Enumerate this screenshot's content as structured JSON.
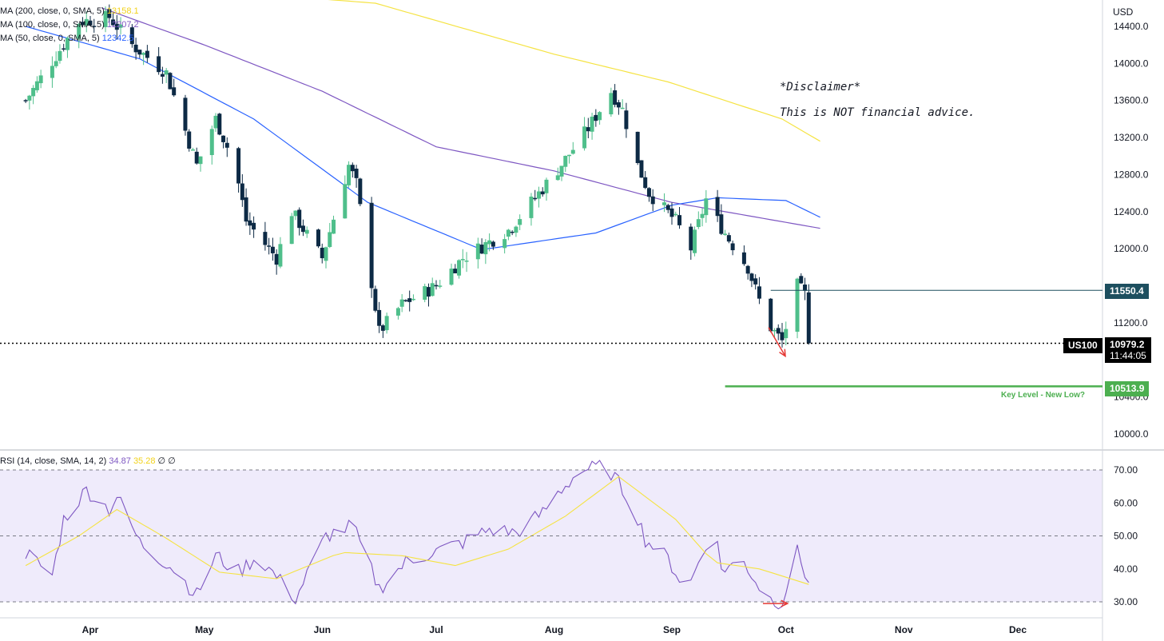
{
  "symbol": "US100",
  "currency": "USD",
  "indicators": {
    "ma200": {
      "label": "MA (200, close, 0, SMA, 5)",
      "value": "13158.1",
      "color": "#f5e342"
    },
    "ma100": {
      "label": "MA (100, close, 0, SMA, 5)",
      "value": "12207.2",
      "color": "#7e57c2"
    },
    "ma50": {
      "label": "MA (50, close, 0, SMA, 5)",
      "value": "12342.5",
      "color": "#2962ff"
    },
    "rsi": {
      "label": "RSI (14, close, SMA, 14, 2)",
      "value": "34.87",
      "ma_value": "35.28",
      "extra": "∅ ∅"
    }
  },
  "annotations": {
    "disclaimer_title": "*Disclaimer*",
    "disclaimer_text": "This is NOT financial advice.",
    "resistance": "11550.4",
    "last_price": "10979.2",
    "countdown": "11:44:05",
    "key_level": "10513.9",
    "key_level_label": "Key Level - New Low?"
  },
  "colors": {
    "up": "#4fbf8b",
    "down": "#0d2a45",
    "resistance_line": "#1d4f5f",
    "key_level": "#4caf50",
    "arrow": "#e53935",
    "rsi_line": "#7e57c2",
    "rsi_ma": "#f5e342",
    "rsi_band": "#efebfb"
  },
  "chart_data": [
    {
      "type": "candlestick",
      "title": "US100",
      "ylabel": "USD",
      "ylim": [
        9900,
        14600
      ],
      "y_ticks": [
        "14400.0",
        "14000.0",
        "13600.0",
        "13200.0",
        "12800.0",
        "12400.0",
        "12000.0",
        "11200.0",
        "10400.0",
        "10000.0"
      ],
      "x_ticks": [
        "Apr",
        "May",
        "Jun",
        "Jul",
        "Aug",
        "Sep",
        "Oct",
        "Nov",
        "Dec"
      ],
      "anchors": [
        {
          "date": "Mar 15",
          "close": 13600
        },
        {
          "date": "Mar 29",
          "close": 14450
        },
        {
          "date": "Apr 6",
          "close": 14500
        },
        {
          "date": "Apr 12",
          "close": 14200
        },
        {
          "date": "Apr 21",
          "close": 13900
        },
        {
          "date": "Apr 29",
          "close": 12900
        },
        {
          "date": "May 4",
          "close": 13400
        },
        {
          "date": "May 9",
          "close": 12900
        },
        {
          "date": "May 12",
          "close": 12300
        },
        {
          "date": "May 20",
          "close": 11900
        },
        {
          "date": "May 24",
          "close": 12400
        },
        {
          "date": "Jun 1",
          "close": 11900
        },
        {
          "date": "Jun 8",
          "close": 12900
        },
        {
          "date": "Jun 10",
          "close": 12700
        },
        {
          "date": "Jun 16",
          "close": 11100
        },
        {
          "date": "Jun 22",
          "close": 11400
        },
        {
          "date": "Jul 1",
          "close": 11600
        },
        {
          "date": "Jul 8",
          "close": 11900
        },
        {
          "date": "Jul 20",
          "close": 12200
        },
        {
          "date": "Aug 1",
          "close": 12800
        },
        {
          "date": "Aug 10",
          "close": 13300
        },
        {
          "date": "Aug 16",
          "close": 13700
        },
        {
          "date": "Aug 19",
          "close": 13500
        },
        {
          "date": "Aug 23",
          "close": 12900
        },
        {
          "date": "Aug 26",
          "close": 12600
        },
        {
          "date": "Sep 2",
          "close": 12300
        },
        {
          "date": "Sep 6",
          "close": 12000
        },
        {
          "date": "Sep 12",
          "close": 12800
        },
        {
          "date": "Sep 13",
          "close": 12300
        },
        {
          "date": "Sep 16",
          "close": 12100
        },
        {
          "date": "Sep 21",
          "close": 11800
        },
        {
          "date": "Sep 26",
          "close": 11200
        },
        {
          "date": "Sep 30",
          "close": 11000
        },
        {
          "date": "Oct 4",
          "close": 11600
        },
        {
          "date": "Oct 6",
          "close": 11500
        },
        {
          "date": "Oct 7",
          "close": 10979.2
        }
      ],
      "series": [
        {
          "name": "MA (200, close, 0, SMA, 5)",
          "points": [
            {
              "date": "Apr 29",
              "value": 14800
            },
            {
              "date": "Jun 15",
              "value": 14650
            },
            {
              "date": "Aug 1",
              "value": 14100
            },
            {
              "date": "Aug 31",
              "value": 13800
            },
            {
              "date": "Sep 30",
              "value": 13400
            },
            {
              "date": "Oct 10",
              "value": 13160
            }
          ]
        },
        {
          "name": "MA (100, close, 0, SMA, 5)",
          "points": [
            {
              "date": "Apr 4",
              "value": 14600
            },
            {
              "date": "May 1",
              "value": 14200
            },
            {
              "date": "Jun 1",
              "value": 13700
            },
            {
              "date": "Jul 1",
              "value": 13100
            },
            {
              "date": "Aug 1",
              "value": 12840
            },
            {
              "date": "Sep 1",
              "value": 12500
            },
            {
              "date": "Oct 10",
              "value": 12220
            }
          ]
        },
        {
          "name": "MA (50, close, 0, SMA, 5)",
          "points": [
            {
              "date": "Mar 15",
              "value": 14400
            },
            {
              "date": "Apr 14",
              "value": 14050
            },
            {
              "date": "May 14",
              "value": 13400
            },
            {
              "date": "Jun 13",
              "value": 12500
            },
            {
              "date": "Jul 13",
              "value": 11990
            },
            {
              "date": "Aug 12",
              "value": 12170
            },
            {
              "date": "Sep 1",
              "value": 12470
            },
            {
              "date": "Sep 13",
              "value": 12550
            },
            {
              "date": "Oct 1",
              "value": 12520
            },
            {
              "date": "Oct 10",
              "value": 12340
            }
          ]
        }
      ],
      "levels": [
        {
          "name": "resistance",
          "value": 11550.4
        },
        {
          "name": "last",
          "value": 10979.2
        },
        {
          "name": "key_level",
          "value": 10513.9
        }
      ]
    },
    {
      "type": "line",
      "title": "RSI (14, close, SMA, 14, 2)",
      "ylim": [
        27,
        76
      ],
      "y_ticks": [
        "70.00",
        "60.00",
        "50.00",
        "40.00",
        "30.00"
      ],
      "bands": [
        30,
        50,
        70
      ],
      "series": [
        {
          "name": "RSI",
          "anchors": [
            {
              "date": "Mar 15",
              "value": 45
            },
            {
              "date": "Mar 22",
              "value": 38
            },
            {
              "date": "Mar 25",
              "value": 55
            },
            {
              "date": "Mar 31",
              "value": 64
            },
            {
              "date": "Apr 6",
              "value": 58
            },
            {
              "date": "Apr 8",
              "value": 62
            },
            {
              "date": "Apr 14",
              "value": 48
            },
            {
              "date": "Apr 23",
              "value": 40
            },
            {
              "date": "Apr 29",
              "value": 32
            },
            {
              "date": "May 4",
              "value": 44
            },
            {
              "date": "May 10",
              "value": 39
            },
            {
              "date": "May 15",
              "value": 44
            },
            {
              "date": "May 25",
              "value": 31
            },
            {
              "date": "Jun 2",
              "value": 50
            },
            {
              "date": "Jun 9",
              "value": 53
            },
            {
              "date": "Jun 16",
              "value": 34
            },
            {
              "date": "Jun 23",
              "value": 42
            },
            {
              "date": "Jun 30",
              "value": 45
            },
            {
              "date": "Jul 8",
              "value": 48
            },
            {
              "date": "Jul 15",
              "value": 52
            },
            {
              "date": "Jul 22",
              "value": 51
            },
            {
              "date": "Jul 29",
              "value": 57
            },
            {
              "date": "Aug 2",
              "value": 63
            },
            {
              "date": "Aug 8",
              "value": 70
            },
            {
              "date": "Aug 15",
              "value": 71
            },
            {
              "date": "Aug 22",
              "value": 59
            },
            {
              "date": "Aug 25",
              "value": 49
            },
            {
              "date": "Aug 31",
              "value": 43
            },
            {
              "date": "Sep 5",
              "value": 33
            },
            {
              "date": "Sep 12",
              "value": 54
            },
            {
              "date": "Sep 14",
              "value": 40
            },
            {
              "date": "Sep 20",
              "value": 42
            },
            {
              "date": "Sep 26",
              "value": 31
            },
            {
              "date": "Sep 30",
              "value": 30
            },
            {
              "date": "Oct 4",
              "value": 45
            },
            {
              "date": "Oct 7",
              "value": 36
            }
          ]
        },
        {
          "name": "RSI-based MA",
          "anchors": [
            {
              "date": "Mar 15",
              "value": 41
            },
            {
              "date": "Mar 29",
              "value": 50
            },
            {
              "date": "Apr 8",
              "value": 58
            },
            {
              "date": "Apr 20",
              "value": 50
            },
            {
              "date": "May 5",
              "value": 39
            },
            {
              "date": "May 20",
              "value": 37
            },
            {
              "date": "Jun 6",
              "value": 45
            },
            {
              "date": "Jun 22",
              "value": 44
            },
            {
              "date": "Jul 6",
              "value": 41
            },
            {
              "date": "Jul 20",
              "value": 46
            },
            {
              "date": "Aug 4",
              "value": 56
            },
            {
              "date": "Aug 18",
              "value": 68
            },
            {
              "date": "Sep 2",
              "value": 55
            },
            {
              "date": "Sep 12",
              "value": 42
            },
            {
              "date": "Sep 24",
              "value": 40
            },
            {
              "date": "Oct 7",
              "value": 35.28
            }
          ]
        }
      ]
    }
  ]
}
